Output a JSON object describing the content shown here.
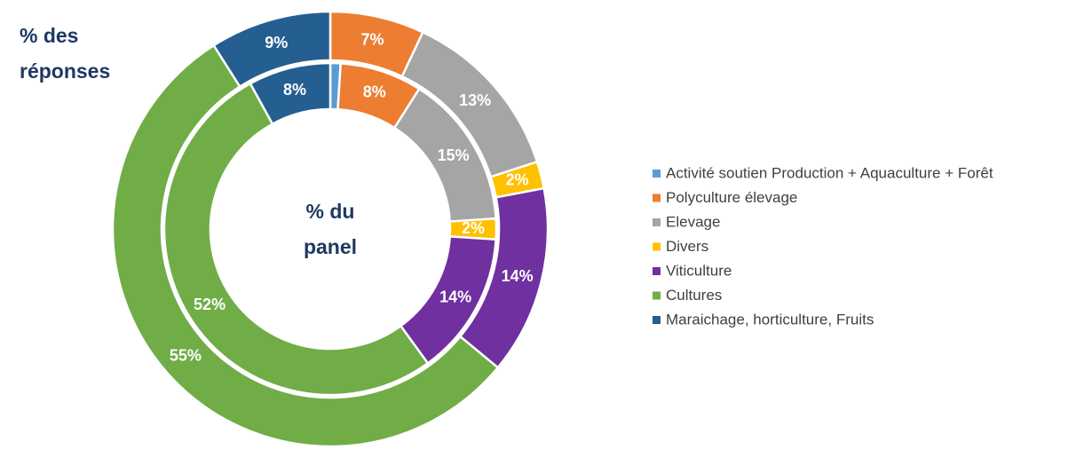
{
  "chart_data": {
    "type": "donut",
    "categories": [
      "Activité soutien Production + Aquaculture + Forêt",
      "Polyculture élevage",
      "Elevage",
      "Divers",
      "Viticulture",
      "Cultures",
      "Maraichage, horticulture, Fruits"
    ],
    "colors": [
      "#5b9bd5",
      "#ed7d31",
      "#a5a5a5",
      "#ffc000",
      "#7030a0",
      "#70ad47",
      "#255e91"
    ],
    "series": [
      {
        "name": "% des réponses",
        "values": [
          0,
          7,
          13,
          2,
          14,
          55,
          9
        ],
        "value_labels": [
          null,
          "7%",
          "13%",
          "2%",
          "14%",
          "55%",
          "9%"
        ]
      },
      {
        "name": "% du panel",
        "values": [
          1,
          8,
          15,
          2,
          14,
          52,
          8
        ],
        "value_labels": [
          null,
          "8%",
          "15%",
          "2%",
          "14%",
          "52%",
          "8%"
        ]
      }
    ]
  }
}
